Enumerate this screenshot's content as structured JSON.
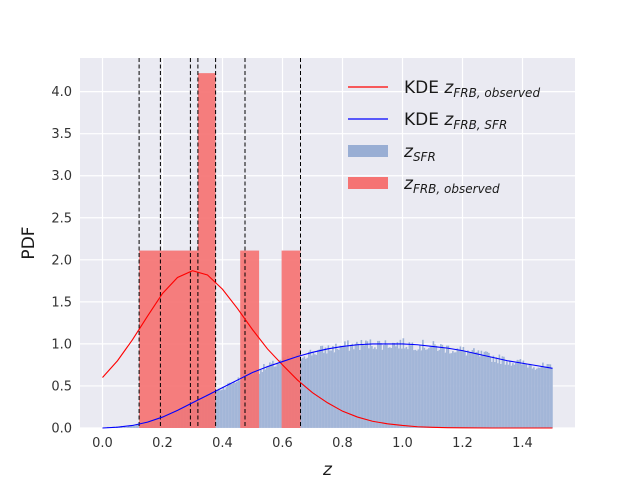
{
  "chart_data": {
    "type": "histogram",
    "xlabel": "z",
    "ylabel": "PDF",
    "xlim": [
      -0.075,
      1.575
    ],
    "ylim": [
      0,
      4.4
    ],
    "xticks": [
      "0.0",
      "0.2",
      "0.4",
      "0.6",
      "0.8",
      "1.0",
      "1.2",
      "1.4"
    ],
    "yticks": [
      "0.0",
      "0.5",
      "1.0",
      "1.5",
      "2.0",
      "2.5",
      "3.0",
      "3.5",
      "4.0"
    ],
    "grid": true,
    "legend_placement": "top-right",
    "colors": {
      "background": "#eaeaf2",
      "grid": "#ffffff",
      "kde_observed": "#ff0000",
      "kde_sfr": "#0000ff",
      "hist_sfr": "#99aed4",
      "hist_observed": "#f57373",
      "vline": "#000000"
    },
    "legend": [
      {
        "type": "line",
        "color": "#ff0000",
        "prefix": "KDE ",
        "sym": "z",
        "sub": "FRB, observed"
      },
      {
        "type": "line",
        "color": "#0000ff",
        "prefix": "KDE ",
        "sym": "z",
        "sub": "FRB, SFR"
      },
      {
        "type": "patch",
        "color": "#99aed4",
        "prefix": "",
        "sym": "z",
        "sub": "SFR"
      },
      {
        "type": "patch",
        "color": "#f57373",
        "prefix": "",
        "sym": "z",
        "sub": "FRB, observed"
      }
    ],
    "observed_hist": {
      "bins": [
        {
          "x0": 0.122,
          "x1": 0.193,
          "value": 2.11
        },
        {
          "x0": 0.193,
          "x1": 0.293,
          "value": 2.11
        },
        {
          "x0": 0.293,
          "x1": 0.318,
          "value": 2.11
        },
        {
          "x0": 0.318,
          "x1": 0.377,
          "value": 4.22
        },
        {
          "x0": 0.459,
          "x1": 0.522,
          "value": 2.11
        },
        {
          "x0": 0.597,
          "x1": 0.66,
          "value": 2.11
        }
      ]
    },
    "vlines": [
      0.122,
      0.193,
      0.293,
      0.318,
      0.377,
      0.475,
      0.66
    ],
    "kde_observed": {
      "x": [
        0.0,
        0.05,
        0.1,
        0.15,
        0.2,
        0.25,
        0.3,
        0.35,
        0.4,
        0.45,
        0.5,
        0.55,
        0.6,
        0.65,
        0.7,
        0.75,
        0.8,
        0.85,
        0.9,
        0.95,
        1.0,
        1.05,
        1.1,
        1.15,
        1.2,
        1.3,
        1.4,
        1.5
      ],
      "y": [
        0.6,
        0.8,
        1.05,
        1.33,
        1.6,
        1.79,
        1.87,
        1.82,
        1.65,
        1.42,
        1.17,
        0.94,
        0.75,
        0.57,
        0.42,
        0.3,
        0.2,
        0.13,
        0.08,
        0.05,
        0.03,
        0.015,
        0.008,
        0.004,
        0.002,
        0.0,
        0.0,
        0.0
      ]
    },
    "kde_sfr": {
      "x": [
        0.0,
        0.05,
        0.1,
        0.15,
        0.2,
        0.25,
        0.3,
        0.35,
        0.4,
        0.45,
        0.5,
        0.55,
        0.6,
        0.65,
        0.7,
        0.75,
        0.8,
        0.85,
        0.9,
        0.95,
        1.0,
        1.05,
        1.1,
        1.15,
        1.2,
        1.25,
        1.3,
        1.35,
        1.4,
        1.45,
        1.5
      ],
      "y": [
        0.0,
        0.01,
        0.03,
        0.07,
        0.13,
        0.21,
        0.3,
        0.39,
        0.48,
        0.57,
        0.66,
        0.73,
        0.79,
        0.85,
        0.9,
        0.94,
        0.97,
        0.99,
        1.0,
        1.0,
        1.0,
        0.99,
        0.97,
        0.95,
        0.92,
        0.88,
        0.84,
        0.8,
        0.77,
        0.74,
        0.71
      ]
    },
    "sfr_hist": {
      "x_range": [
        0.0,
        1.5
      ],
      "bin_count": 300,
      "envelope_x": [
        0.0,
        0.05,
        0.1,
        0.15,
        0.2,
        0.25,
        0.3,
        0.35,
        0.4,
        0.45,
        0.5,
        0.55,
        0.6,
        0.65,
        0.7,
        0.75,
        0.8,
        0.85,
        0.9,
        0.95,
        1.0,
        1.05,
        1.1,
        1.15,
        1.2,
        1.25,
        1.3,
        1.35,
        1.4,
        1.45,
        1.5
      ],
      "envelope_y": [
        0.0,
        0.01,
        0.03,
        0.07,
        0.13,
        0.21,
        0.3,
        0.39,
        0.48,
        0.57,
        0.66,
        0.73,
        0.79,
        0.85,
        0.9,
        0.94,
        0.97,
        0.99,
        1.0,
        1.0,
        1.0,
        0.99,
        0.97,
        0.95,
        0.92,
        0.88,
        0.84,
        0.8,
        0.77,
        0.74,
        0.71
      ]
    }
  }
}
